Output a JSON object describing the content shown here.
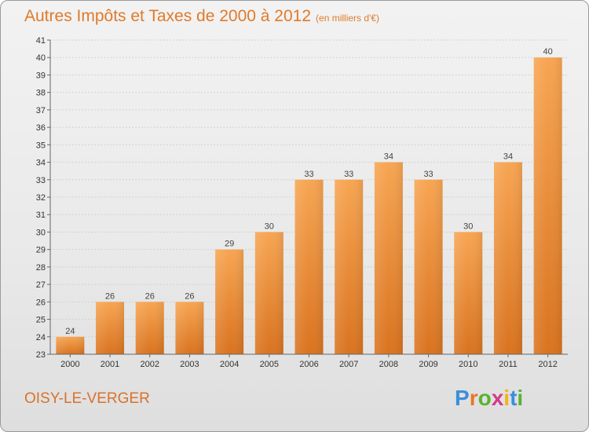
{
  "header": {
    "title": "Autres Impôts et Taxes de 2000 à 2012",
    "unit": "(en milliers d'€)"
  },
  "footer": {
    "commune": "OISY-LE-VERGER",
    "logo": [
      "P",
      "r",
      "o",
      "x",
      "i",
      "t",
      "i"
    ],
    "logo_colors": [
      "#3a8fd8",
      "#e8772a",
      "#57b233",
      "#d43a8a",
      "#f0b31c",
      "#3a8fd8",
      "#57b233"
    ]
  },
  "chart_data": {
    "type": "bar",
    "title": "Autres Impôts et Taxes de 2000 à 2012",
    "subtitle": "(en milliers d'€)",
    "categories": [
      "2000",
      "2001",
      "2002",
      "2003",
      "2004",
      "2005",
      "2006",
      "2007",
      "2008",
      "2009",
      "2010",
      "2011",
      "2012"
    ],
    "values": [
      24,
      26,
      26,
      26,
      29,
      30,
      33,
      33,
      34,
      33,
      30,
      34,
      40
    ],
    "ylim": [
      23,
      41
    ],
    "yticks": [
      23,
      24,
      25,
      26,
      27,
      28,
      29,
      30,
      31,
      32,
      33,
      34,
      35,
      36,
      37,
      38,
      39,
      40,
      41
    ],
    "grid": "horizontal",
    "bar_color_top": "#f7a552",
    "bar_color_bottom": "#d9731f",
    "show_value_labels": true
  }
}
